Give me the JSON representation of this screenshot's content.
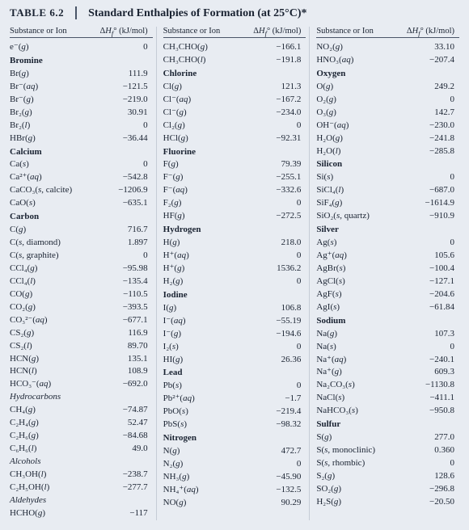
{
  "table_number": "TABLE 6.2",
  "title": "Standard Enthalpies of Formation (at 25°C)*",
  "header": {
    "col1": "Substance or Ion",
    "col2": "ΔH",
    "col2_sub": "f",
    "col2_sup": "°",
    "col2_unit": " (kJ/mol)"
  },
  "columns": [
    [
      {
        "f": "e⁻(g)",
        "v": "0"
      },
      {
        "s": "Bromine"
      },
      {
        "f": "Br(g)",
        "v": "111.9"
      },
      {
        "f": "Br⁻(aq)",
        "v": "−121.5"
      },
      {
        "f": "Br⁻(g)",
        "v": "−219.0"
      },
      {
        "f": "Br₂(g)",
        "v": "30.91"
      },
      {
        "f": "Br₂(l)",
        "v": "0"
      },
      {
        "f": "HBr(g)",
        "v": "−36.44"
      },
      {
        "s": "Calcium"
      },
      {
        "f": "Ca(s)",
        "v": "0"
      },
      {
        "f": "Ca²⁺(aq)",
        "v": "−542.8"
      },
      {
        "f": "CaCO₃(s, calcite)",
        "v": "−1206.9"
      },
      {
        "f": "CaO(s)",
        "v": "−635.1"
      },
      {
        "s": "Carbon"
      },
      {
        "f": "C(g)",
        "v": "716.7"
      },
      {
        "f": "C(s, diamond)",
        "v": "1.897"
      },
      {
        "f": "C(s, graphite)",
        "v": "0"
      },
      {
        "f": "CCl₄(g)",
        "v": "−95.98"
      },
      {
        "f": "CCl₄(l)",
        "v": "−135.4"
      },
      {
        "f": "CO(g)",
        "v": "−110.5"
      },
      {
        "f": "CO₂(g)",
        "v": "−393.5"
      },
      {
        "f": "CO₃²⁻(aq)",
        "v": "−677.1"
      },
      {
        "f": "CS₂(g)",
        "v": "116.9"
      },
      {
        "f": "CS₂(l)",
        "v": "89.70"
      },
      {
        "f": "HCN(g)",
        "v": "135.1"
      },
      {
        "f": "HCN(l)",
        "v": "108.9"
      },
      {
        "f": "HCO₃⁻(aq)",
        "v": "−692.0"
      },
      {
        "i": "Hydrocarbons"
      },
      {
        "f": "CH₄(g)",
        "v": "−74.87"
      },
      {
        "f": "C₂H₄(g)",
        "v": "52.47"
      },
      {
        "f": "C₂H₆(g)",
        "v": "−84.68"
      },
      {
        "f": "C₆H₆(l)",
        "v": "49.0"
      },
      {
        "i": "Alcohols"
      },
      {
        "f": "CH₃OH(l)",
        "v": "−238.7"
      },
      {
        "f": "C₂H₅OH(l)",
        "v": "−277.7"
      },
      {
        "i": "Aldehydes"
      },
      {
        "f": "HCHO(g)",
        "v": "−117"
      }
    ],
    [
      {
        "f": "CH₃CHO(g)",
        "v": "−166.1"
      },
      {
        "f": "CH₃CHO(l)",
        "v": "−191.8"
      },
      {
        "s": "Chlorine"
      },
      {
        "f": "Cl(g)",
        "v": "121.3"
      },
      {
        "f": "Cl⁻(aq)",
        "v": "−167.2"
      },
      {
        "f": "Cl⁻(g)",
        "v": "−234.0"
      },
      {
        "f": "Cl₂(g)",
        "v": "0"
      },
      {
        "f": "HCl(g)",
        "v": "−92.31"
      },
      {
        "s": "Fluorine"
      },
      {
        "f": "F(g)",
        "v": "79.39"
      },
      {
        "f": "F⁻(g)",
        "v": "−255.1"
      },
      {
        "f": "F⁻(aq)",
        "v": "−332.6"
      },
      {
        "f": "F₂(g)",
        "v": "0"
      },
      {
        "f": "HF(g)",
        "v": "−272.5"
      },
      {
        "s": "Hydrogen"
      },
      {
        "f": "H(g)",
        "v": "218.0"
      },
      {
        "f": "H⁺(aq)",
        "v": "0"
      },
      {
        "f": "H⁺(g)",
        "v": "1536.2"
      },
      {
        "f": "H₂(g)",
        "v": "0"
      },
      {
        "s": "Iodine"
      },
      {
        "f": "I(g)",
        "v": "106.8"
      },
      {
        "f": "I⁻(aq)",
        "v": "−55.19"
      },
      {
        "f": "I⁻(g)",
        "v": "−194.6"
      },
      {
        "f": "I₂(s)",
        "v": "0"
      },
      {
        "f": "HI(g)",
        "v": "26.36"
      },
      {
        "s": "Lead"
      },
      {
        "f": "Pb(s)",
        "v": "0"
      },
      {
        "f": "Pb²⁺(aq)",
        "v": "−1.7"
      },
      {
        "f": "PbO(s)",
        "v": "−219.4"
      },
      {
        "f": "PbS(s)",
        "v": "−98.32"
      },
      {
        "s": "Nitrogen"
      },
      {
        "f": "N(g)",
        "v": "472.7"
      },
      {
        "f": "N₂(g)",
        "v": "0"
      },
      {
        "f": "NH₃(g)",
        "v": "−45.90"
      },
      {
        "f": "NH₄⁺(aq)",
        "v": "−132.5"
      },
      {
        "f": "NO(g)",
        "v": "90.29"
      }
    ],
    [
      {
        "f": "NO₂(g)",
        "v": "33.10"
      },
      {
        "f": "HNO₃(aq)",
        "v": "−207.4"
      },
      {
        "s": "Oxygen"
      },
      {
        "f": "O(g)",
        "v": "249.2"
      },
      {
        "f": "O₂(g)",
        "v": "0"
      },
      {
        "f": "O₃(g)",
        "v": "142.7"
      },
      {
        "f": "OH⁻(aq)",
        "v": "−230.0"
      },
      {
        "f": "H₂O(g)",
        "v": "−241.8"
      },
      {
        "f": "H₂O(l)",
        "v": "−285.8"
      },
      {
        "s": "Silicon"
      },
      {
        "f": "Si(s)",
        "v": "0"
      },
      {
        "f": "SiCl₄(l)",
        "v": "−687.0"
      },
      {
        "f": "SiF₄(g)",
        "v": "−1614.9"
      },
      {
        "f": "SiO₂(s, quartz)",
        "v": "−910.9"
      },
      {
        "s": "Silver"
      },
      {
        "f": "Ag(s)",
        "v": "0"
      },
      {
        "f": "Ag⁺(aq)",
        "v": "105.6"
      },
      {
        "f": "AgBr(s)",
        "v": "−100.4"
      },
      {
        "f": "AgCl(s)",
        "v": "−127.1"
      },
      {
        "f": "AgF(s)",
        "v": "−204.6"
      },
      {
        "f": "AgI(s)",
        "v": "−61.84"
      },
      {
        "s": "Sodium"
      },
      {
        "f": "Na(g)",
        "v": "107.3"
      },
      {
        "f": "Na(s)",
        "v": "0"
      },
      {
        "f": "Na⁺(aq)",
        "v": "−240.1"
      },
      {
        "f": "Na⁺(g)",
        "v": "609.3"
      },
      {
        "f": "Na₂CO₃(s)",
        "v": "−1130.8"
      },
      {
        "f": "NaCl(s)",
        "v": "−411.1"
      },
      {
        "f": "NaHCO₃(s)",
        "v": "−950.8"
      },
      {
        "s": "Sulfur"
      },
      {
        "f": "S(g)",
        "v": "277.0"
      },
      {
        "f": "S(s, monoclinic)",
        "v": "0.360"
      },
      {
        "f": "S(s, rhombic)",
        "v": "0"
      },
      {
        "f": "S₂(g)",
        "v": "128.6"
      },
      {
        "f": "SO₂(g)",
        "v": "−296.8"
      },
      {
        "f": "H₂S(g)",
        "v": "−20.50"
      }
    ]
  ]
}
